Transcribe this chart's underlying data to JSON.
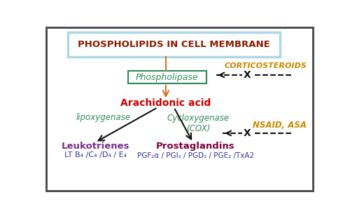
{
  "bg_color": "#ffffff",
  "border_color": "#444444",
  "title_text": "PHOSPHOLIPIDS IN CELL MEMBRANE",
  "title_color": "#8B1A00",
  "title_box_edge_color": "#add8e6",
  "title_box_face_color": "#ffffff",
  "phospholipase_text": "Phospholipase",
  "phospholipase_box_color": "#2e8b57",
  "phospholipase_text_color": "#2e8b57",
  "arachidonic_text": "Arachidonic acid",
  "arachidonic_color": "#cc0000",
  "lipoxygenase_text": "lipoxygenase",
  "lipoxygenase_color": "#2e8b57",
  "cox_text": "Cycloxygenase\n(COX)",
  "cox_color": "#2e8b57",
  "leukotrienes_text": "Leukotrienes",
  "leukotrienes_color": "#7B2D8B",
  "lt_sub_text": "LT B₄ /C₄ /D₄ / E₄",
  "lt_sub_color": "#3333aa",
  "prostaglandins_text": "Prostaglandins",
  "prostaglandins_color": "#800040",
  "pg_sub_text": "PGF₂α / PGI₂ / PGD₂ / PGE₂ /TxA2",
  "pg_sub_color": "#3333aa",
  "corticosteroids_text": "CORTICOSTEROIDS",
  "corticosteroids_color": "#cc8800",
  "nsaid_text": "NSAID, ASA",
  "nsaid_color": "#cc8800",
  "arrow_color_orange": "#e07020",
  "arrow_color_black": "#111111",
  "dashed_color": "#111111",
  "x_color": "#111111"
}
